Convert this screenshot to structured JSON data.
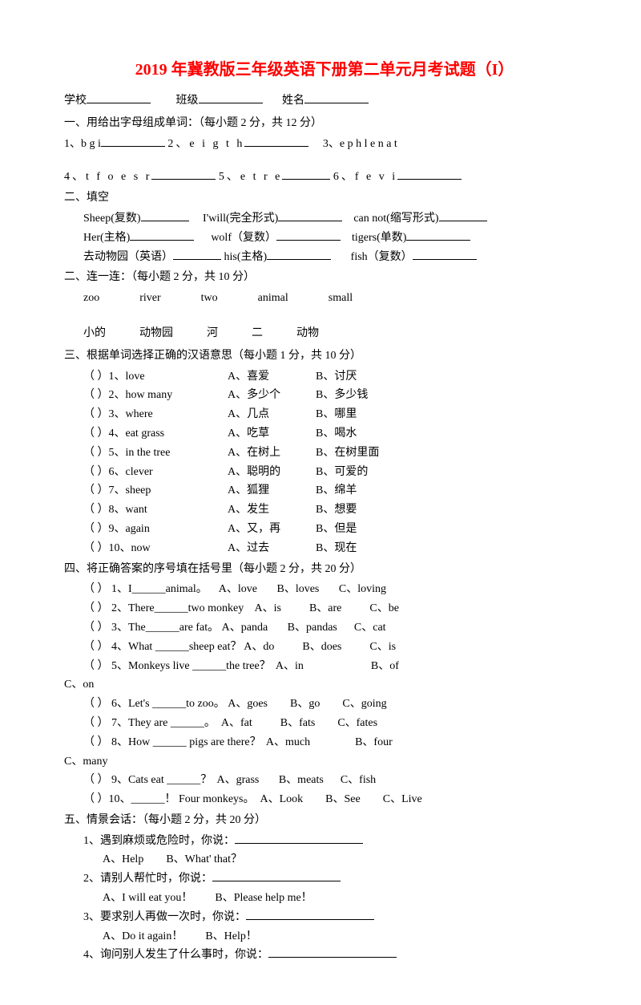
{
  "colors": {
    "title": "#ff0000",
    "text": "#000000",
    "bg": "#ffffff"
  },
  "typography": {
    "body_fontsize": 14,
    "title_fontsize": 20,
    "body_family": "SimSun",
    "title_weight": "bold"
  },
  "title": "2019 年冀教版三年级英语下册第二单元月考试题（I）",
  "header": {
    "school_label": "学校",
    "class_label": "班级",
    "name_label": "姓名"
  },
  "s1": {
    "head": "一、用给出字母组成单词：（每小题 2 分，共 12 分）",
    "q1": "1、b g i",
    "q2": "2、e  i  g  t  h",
    "q3": "3、e p h l e n a t",
    "q4": "4、t  f  o  e  s  r",
    "q5": "5、e  t  r  e",
    "q6": "6、f  e  v  i"
  },
  "s2a": {
    "head": "二、填空",
    "l1a": "Sheep(复数)",
    "l1b": "I'will(完全形式)",
    "l1c": "can not(缩写形式)",
    "l2a": "Her(主格)",
    "l2b": "wolf（复数）",
    "l2c": "tigers(单数)",
    "l3a": "去动物园（英语）",
    "l3b": "his(主格)",
    "l3c": "fish（复数）"
  },
  "s2b": {
    "head": "二、连一连：（每小题 2 分，共 10 分）",
    "row1": [
      "zoo",
      "river",
      "two",
      "animal",
      "small"
    ],
    "row2": [
      "小的",
      "动物园",
      "河",
      "二",
      "动物"
    ]
  },
  "s3": {
    "head": "三、根据单词选择正确的汉语意思（每小题 1 分，共 10 分）",
    "items": [
      {
        "n": "（     ）1、love",
        "a": "A、喜爱",
        "b": "B、讨厌"
      },
      {
        "n": "（     ）2、how  many",
        "a": "A、多少个",
        "b": "B、多少钱"
      },
      {
        "n": "（     ）3、where",
        "a": "A、几点",
        "b": "B、哪里"
      },
      {
        "n": "（     ）4、eat  grass",
        "a": "A、吃草",
        "b": "B、喝水"
      },
      {
        "n": "（     ）5、in  the  tree",
        "a": "A、在树上",
        "b": "B、在树里面"
      },
      {
        "n": "（     ）6、clever",
        "a": "A、聪明的",
        "b": "B、可爱的"
      },
      {
        "n": "（     ）7、sheep",
        "a": "A、狐狸",
        "b": "B、绵羊"
      },
      {
        "n": "（     ）8、want",
        "a": "A、发生",
        "b": "B、想要"
      },
      {
        "n": "（     ）9、again",
        "a": "A、又，再",
        "b": "B、但是"
      },
      {
        "n": "（     ）10、now",
        "a": "A、过去",
        "b": "B、现在"
      }
    ]
  },
  "s4": {
    "head": "四、将正确答案的序号填在括号里（每小题 2 分，共 20 分）",
    "q1": {
      "t": "（     ） 1、I______animal。",
      "a": "A、love",
      "b": "B、loves",
      "c": "C、loving"
    },
    "q2": {
      "t": "（     ） 2、There______two   monkey",
      "a": "A、is",
      "b": "B、are",
      "c": "C、be"
    },
    "q3": {
      "t": "（     ） 3、The______are   fat。",
      "a": "A、panda",
      "b": "B、pandas",
      "c": "C、cat"
    },
    "q4": {
      "t": "（     ） 4、What ______sheep   eat？",
      "a": "A、do",
      "b": "B、does",
      "c": "C、is"
    },
    "q5": {
      "t": "（       ） 5、Monkeys    live  ______the      tree？",
      "a": "A、in",
      "b": "B、of",
      "c": "C、on"
    },
    "q6": {
      "t": "（     ） 6、Let's ______to   zoo。",
      "a": "A、goes",
      "b": "B、go",
      "c": "C、going"
    },
    "q7": {
      "t": "（     ） 7、They   are   ______。",
      "a": "A、fat",
      "b": "B、fats",
      "c": "C、fates"
    },
    "q8": {
      "t": "（      ） 8、How  ______ pigs      are       there？",
      "a": "A、much",
      "b": "B、four",
      "c": "C、many"
    },
    "q9": {
      "t": "（     ） 9、Cats    eat   ______？",
      "a": "A、grass",
      "b": "B、meats",
      "c": "C、fish"
    },
    "q10": {
      "t": "（     ）10、______！ Four   monkeys。",
      "a": "A、Look",
      "b": "B、See",
      "c": "C、Live"
    }
  },
  "s5": {
    "head": "五、情景会话：（每小题 2 分，共 20 分）",
    "q1": {
      "p": "1、遇到麻烦或危险时，你说：",
      "a": "A、Help",
      "b": "B、What' that？"
    },
    "q2": {
      "p": "2、请别人帮忙时，你说：",
      "a": "A、I  will  eat  you！",
      "b": "B、Please  help  me！"
    },
    "q3": {
      "p": "3、要求别人再做一次时，你说：",
      "a": "A、Do  it  again！",
      "b": "B、Help！"
    },
    "q4": {
      "p": "4、询问别人发生了什么事时，你说："
    }
  }
}
